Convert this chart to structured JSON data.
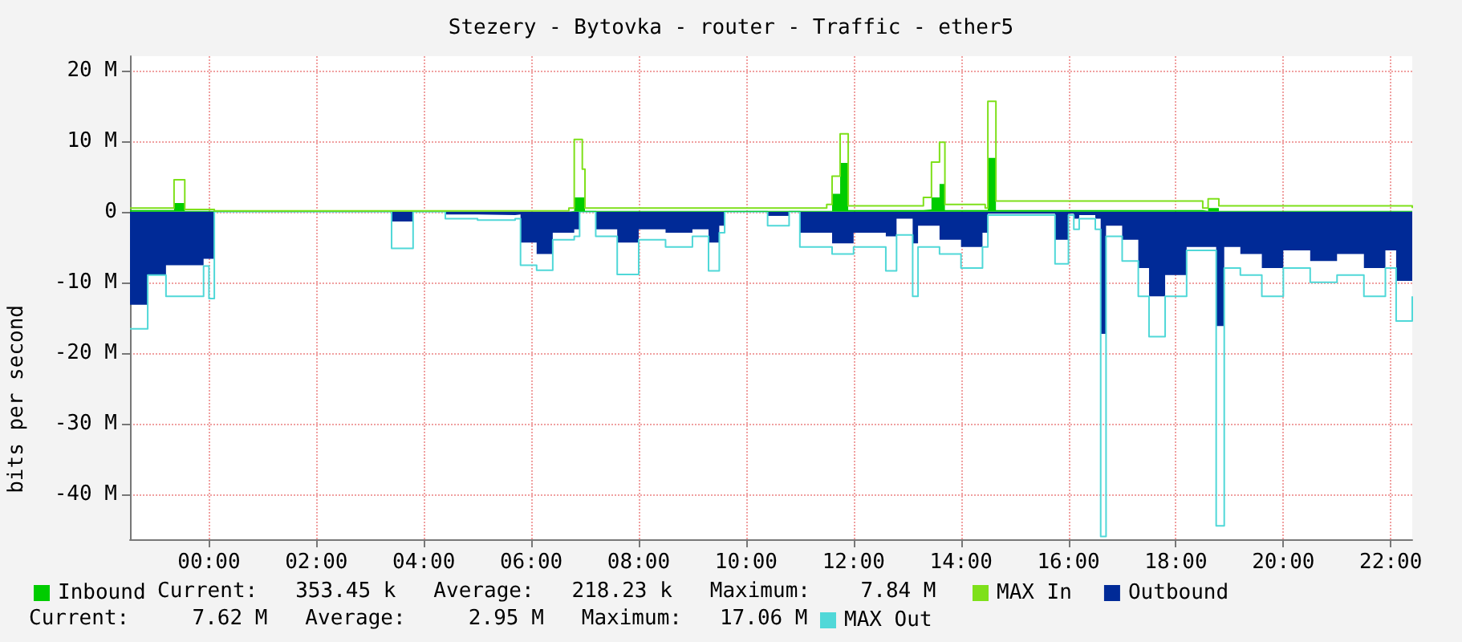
{
  "chart_data": {
    "type": "area",
    "title": "Stezery - Bytovka - router - Traffic - ether5",
    "ylabel": "bits per second",
    "xlim": [
      -1.47,
      22.4
    ],
    "xticks": [
      {
        "value": 0,
        "label": "00:00"
      },
      {
        "value": 2,
        "label": "02:00"
      },
      {
        "value": 4,
        "label": "04:00"
      },
      {
        "value": 6,
        "label": "06:00"
      },
      {
        "value": 8,
        "label": "08:00"
      },
      {
        "value": 10,
        "label": "10:00"
      },
      {
        "value": 12,
        "label": "12:00"
      },
      {
        "value": 14,
        "label": "14:00"
      },
      {
        "value": 16,
        "label": "16:00"
      },
      {
        "value": 18,
        "label": "18:00"
      },
      {
        "value": 20,
        "label": "20:00"
      },
      {
        "value": 22,
        "label": "22:00"
      }
    ],
    "ylim": [
      -46.4,
      22
    ],
    "yticks": [
      {
        "value": -40,
        "label": "-40 M"
      },
      {
        "value": -30,
        "label": "-30 M"
      },
      {
        "value": -20,
        "label": "-20 M"
      },
      {
        "value": -10,
        "label": "-10 M"
      },
      0,
      {
        "value": 10,
        "label": "10 M"
      },
      {
        "value": 20,
        "label": "20 M"
      }
    ],
    "grid": true,
    "legend": "bottom",
    "marker": "none",
    "line_style": "solid",
    "series": [
      {
        "name": "Outbound",
        "color": "#002a97",
        "x": [
          -1.47,
          -1.14,
          -0.8,
          -0.1,
          0.0,
          0.1,
          3.3,
          3.4,
          3.6,
          3.8,
          3.9,
          4.4,
          5.0,
          5.7,
          5.8,
          6.1,
          6.4,
          6.8,
          6.9,
          7.1,
          7.2,
          7.6,
          8.0,
          8.5,
          9.0,
          9.3,
          9.5,
          9.6,
          10.4,
          10.6,
          10.8,
          11.0,
          11.6,
          12.0,
          12.6,
          12.8,
          13.0,
          13.1,
          13.2,
          13.6,
          14.0,
          14.4,
          14.5,
          15.6,
          15.75,
          15.9,
          16.0,
          16.1,
          16.2,
          16.5,
          16.6,
          16.7,
          16.9,
          17.0,
          17.3,
          17.5,
          17.8,
          18.2,
          18.5,
          18.6,
          18.75,
          18.9,
          19.2,
          19.6,
          20.0,
          20.5,
          21.0,
          21.5,
          21.9,
          22.1,
          22.4
        ],
        "values": [
          -13.2,
          -9,
          -7.6,
          -6.7,
          -6.7,
          0,
          0,
          -1.4,
          -1.4,
          0,
          0,
          -0.4,
          -0.5,
          -0.4,
          -4.4,
          -6,
          -3,
          -2.5,
          0,
          0,
          -2.5,
          -4.4,
          -2.5,
          -3,
          -2.5,
          -4.4,
          -2,
          0,
          -0.6,
          -0.6,
          0,
          -3,
          -4.5,
          -3,
          -3.5,
          -1,
          -1,
          -4.5,
          -2,
          -4,
          -5,
          -3,
          -0.3,
          -0.3,
          -4,
          -4,
          -0.3,
          -1,
          -0.5,
          -1,
          -17.3,
          -2,
          -2,
          -4,
          -8,
          -12,
          -9,
          -5,
          -5,
          -5,
          -16.2,
          -5,
          -6,
          -8,
          -5.5,
          -7,
          -6,
          -8,
          -5.5,
          -9.8,
          -9.8
        ]
      },
      {
        "name": "MAX Out",
        "type": "step",
        "color": "#50d8d8",
        "x": [
          -1.47,
          -1.14,
          -0.8,
          -0.1,
          0.0,
          0.1,
          3.3,
          3.4,
          3.6,
          3.8,
          3.9,
          4.4,
          5.0,
          5.7,
          5.8,
          6.1,
          6.4,
          6.8,
          6.9,
          7.1,
          7.2,
          7.6,
          8.0,
          8.5,
          9.0,
          9.3,
          9.5,
          9.6,
          10.4,
          10.6,
          10.8,
          11.0,
          11.6,
          12.0,
          12.6,
          12.8,
          13.0,
          13.1,
          13.2,
          13.6,
          14.0,
          14.4,
          14.5,
          15.6,
          15.75,
          15.9,
          16.0,
          16.1,
          16.2,
          16.5,
          16.6,
          16.7,
          16.9,
          17.0,
          17.3,
          17.5,
          17.8,
          18.2,
          18.5,
          18.6,
          18.75,
          18.9,
          19.2,
          19.6,
          20.0,
          20.5,
          21.0,
          21.5,
          21.9,
          22.1,
          22.4
        ],
        "values": [
          -16.6,
          -9,
          -12,
          -7.7,
          -12.3,
          0,
          0,
          -5.2,
          -5.2,
          0,
          0,
          -1,
          -1.2,
          -1,
          -7.6,
          -8.3,
          -4,
          -3.5,
          0,
          0,
          -3.5,
          -8.9,
          -4,
          -5,
          -3.5,
          -8.4,
          -3,
          0,
          -2,
          -2,
          0,
          -5,
          -6,
          -5,
          -8.4,
          -3.3,
          -3.3,
          -12,
          -5,
          -6,
          -8,
          -5,
          -0.5,
          -0.5,
          -7.4,
          -7.4,
          -0.5,
          -2.5,
          -1,
          -2.5,
          -46,
          -3.5,
          -3.5,
          -7,
          -12,
          -17.7,
          -12,
          -5.5,
          -5.5,
          -5.5,
          -44.5,
          -8,
          -9,
          -12,
          -8,
          -10,
          -9,
          -12,
          -8,
          -15.5,
          -12
        ]
      },
      {
        "name": "Inbound",
        "color": "#00cc00",
        "x": [
          -1.47,
          -0.7,
          -0.65,
          -0.5,
          -0.45,
          0.1,
          6.7,
          6.8,
          6.95,
          7.0,
          11.5,
          11.6,
          11.75,
          11.85,
          11.9,
          13.3,
          13.45,
          13.6,
          13.7,
          14.45,
          14.5,
          14.6,
          14.65,
          18.5,
          18.6,
          18.8,
          22.4
        ],
        "values": [
          0.2,
          0.2,
          1.2,
          1.2,
          0.1,
          0,
          0.1,
          2,
          2,
          0.1,
          0.1,
          2.5,
          6.9,
          6.9,
          0.2,
          0.3,
          2,
          3.9,
          0.2,
          0.2,
          7.6,
          7.6,
          0.2,
          0.1,
          0.5,
          0.1,
          0.2
        ]
      },
      {
        "name": "MAX In",
        "type": "step",
        "color": "#7ee01a",
        "x": [
          -1.47,
          -0.7,
          -0.65,
          -0.5,
          -0.45,
          0.1,
          6.7,
          6.8,
          6.95,
          7.0,
          11.5,
          11.6,
          11.75,
          11.85,
          11.9,
          13.3,
          13.45,
          13.6,
          13.7,
          14.45,
          14.5,
          14.6,
          14.65,
          18.5,
          18.6,
          18.8,
          22.4
        ],
        "values": [
          0.5,
          0.5,
          4.5,
          4.5,
          0.3,
          0.1,
          0.5,
          10.2,
          6,
          0.5,
          1,
          5,
          11,
          11,
          0.8,
          2,
          7,
          9.8,
          1,
          0.5,
          15.6,
          15.6,
          1.5,
          0.5,
          1.8,
          0.8,
          0.5
        ]
      }
    ],
    "annotations": [
      "Current:   353.45 k   Average:   218.23 k   Maximum:    7.84 M",
      "Current:     7.62 M   Average:     2.95 M   Maximum:   17.06 M"
    ]
  }
}
